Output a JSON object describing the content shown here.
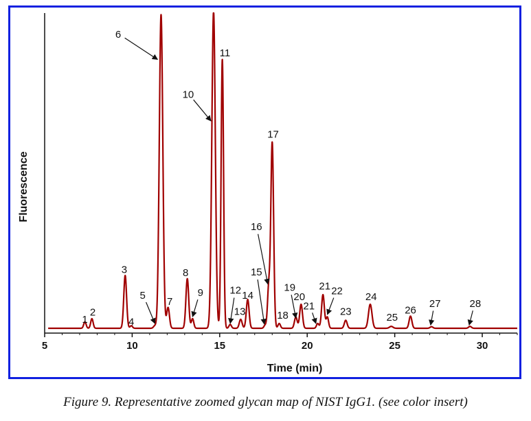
{
  "chart_data": {
    "type": "line",
    "xlabel": "Time (min)",
    "ylabel": "Fluorescence",
    "xlim": [
      5,
      32
    ],
    "ylim": [
      0,
      100
    ],
    "x_ticks": [
      5,
      10,
      15,
      20,
      25,
      30
    ],
    "line_color": "#a00000",
    "baseline": 1.5,
    "peaks": [
      {
        "x": 7.3,
        "height": 2.0,
        "width": 0.07
      },
      {
        "x": 7.7,
        "height": 3.0,
        "width": 0.07
      },
      {
        "x": 9.6,
        "height": 16.5,
        "width": 0.08
      },
      {
        "x": 9.95,
        "height": 0.8,
        "width": 0.07
      },
      {
        "x": 11.3,
        "height": 0.8,
        "width": 0.08
      },
      {
        "x": 11.65,
        "height": 98.0,
        "width": 0.1
      },
      {
        "x": 12.05,
        "height": 6.5,
        "width": 0.08
      },
      {
        "x": 13.15,
        "height": 15.5,
        "width": 0.08
      },
      {
        "x": 13.45,
        "height": 3.0,
        "width": 0.07
      },
      {
        "x": 14.65,
        "height": 99.0,
        "width": 0.1
      },
      {
        "x": 15.15,
        "height": 84.0,
        "width": 0.07
      },
      {
        "x": 15.6,
        "height": 1.2,
        "width": 0.07
      },
      {
        "x": 16.2,
        "height": 2.8,
        "width": 0.08
      },
      {
        "x": 16.6,
        "height": 9.0,
        "width": 0.08
      },
      {
        "x": 17.6,
        "height": 1.0,
        "width": 0.07
      },
      {
        "x": 17.8,
        "height": 12.5,
        "width": 0.07
      },
      {
        "x": 18.0,
        "height": 58.0,
        "width": 0.08
      },
      {
        "x": 18.4,
        "height": 1.5,
        "width": 0.07
      },
      {
        "x": 19.35,
        "height": 3.5,
        "width": 0.08
      },
      {
        "x": 19.65,
        "height": 7.5,
        "width": 0.08
      },
      {
        "x": 20.6,
        "height": 1.5,
        "width": 0.07
      },
      {
        "x": 20.9,
        "height": 10.5,
        "width": 0.08
      },
      {
        "x": 21.15,
        "height": 3.5,
        "width": 0.07
      },
      {
        "x": 22.2,
        "height": 2.5,
        "width": 0.08
      },
      {
        "x": 23.6,
        "height": 7.5,
        "width": 0.1
      },
      {
        "x": 24.8,
        "height": 0.6,
        "width": 0.1
      },
      {
        "x": 25.9,
        "height": 3.8,
        "width": 0.08
      },
      {
        "x": 27.1,
        "height": 0.5,
        "width": 0.08
      },
      {
        "x": 29.3,
        "height": 0.6,
        "width": 0.08
      }
    ],
    "peak_labels": [
      {
        "text": "1",
        "x": 7.3,
        "y": 3.2
      },
      {
        "text": "2",
        "x": 7.75,
        "y": 5.5
      },
      {
        "text": "3",
        "x": 9.55,
        "y": 18.8
      },
      {
        "text": "4",
        "x": 9.95,
        "y": 2.5
      },
      {
        "text": "5",
        "x": 10.6,
        "y": 10.7,
        "arrow_to": [
          11.3,
          3.0
        ]
      },
      {
        "text": "6",
        "x": 9.2,
        "y": 92.3,
        "arrow_to": [
          11.45,
          85.5
        ]
      },
      {
        "text": "7",
        "x": 12.15,
        "y": 8.8
      },
      {
        "text": "8",
        "x": 13.05,
        "y": 17.8
      },
      {
        "text": "9",
        "x": 13.9,
        "y": 11.6,
        "arrow_to": [
          13.45,
          5.1
        ]
      },
      {
        "text": "10",
        "x": 13.2,
        "y": 73.5,
        "arrow_to": [
          14.5,
          66.3
        ]
      },
      {
        "text": "11",
        "x": 15.3,
        "y": 86.5
      },
      {
        "text": "12",
        "x": 15.9,
        "y": 12.3,
        "arrow_to": [
          15.6,
          3.0
        ]
      },
      {
        "text": "13",
        "x": 16.15,
        "y": 5.7
      },
      {
        "text": "14",
        "x": 16.6,
        "y": 10.7
      },
      {
        "text": "15",
        "x": 17.1,
        "y": 18.0,
        "arrow_to": [
          17.55,
          2.8
        ]
      },
      {
        "text": "16",
        "x": 17.1,
        "y": 32.2,
        "arrow_to": [
          17.75,
          15.3
        ]
      },
      {
        "text": "17",
        "x": 18.05,
        "y": 61.0
      },
      {
        "text": "18",
        "x": 18.6,
        "y": 4.5
      },
      {
        "text": "19",
        "x": 19.0,
        "y": 13.2,
        "arrow_to": [
          19.35,
          4.7
        ]
      },
      {
        "text": "20",
        "x": 19.55,
        "y": 10.3
      },
      {
        "text": "21",
        "x": 20.1,
        "y": 7.4,
        "arrow_to": [
          20.5,
          3.0
        ]
      },
      {
        "text": "21",
        "x": 21.0,
        "y": 13.6
      },
      {
        "text": "22",
        "x": 21.7,
        "y": 12.1,
        "arrow_to": [
          21.15,
          5.8
        ]
      },
      {
        "text": "23",
        "x": 22.2,
        "y": 5.7
      },
      {
        "text": "24",
        "x": 23.65,
        "y": 10.3
      },
      {
        "text": "25",
        "x": 24.85,
        "y": 3.9
      },
      {
        "text": "26",
        "x": 25.9,
        "y": 6.1
      },
      {
        "text": "27",
        "x": 27.3,
        "y": 8.2,
        "arrow_to": [
          27.05,
          2.5
        ]
      },
      {
        "text": "28",
        "x": 29.6,
        "y": 8.2,
        "arrow_to": [
          29.25,
          2.5
        ]
      }
    ]
  },
  "figure": {
    "caption": "Figure 9. Representative zoomed glycan map of NIST IgG1. (see color insert)",
    "frame_color": "#1020e0"
  }
}
